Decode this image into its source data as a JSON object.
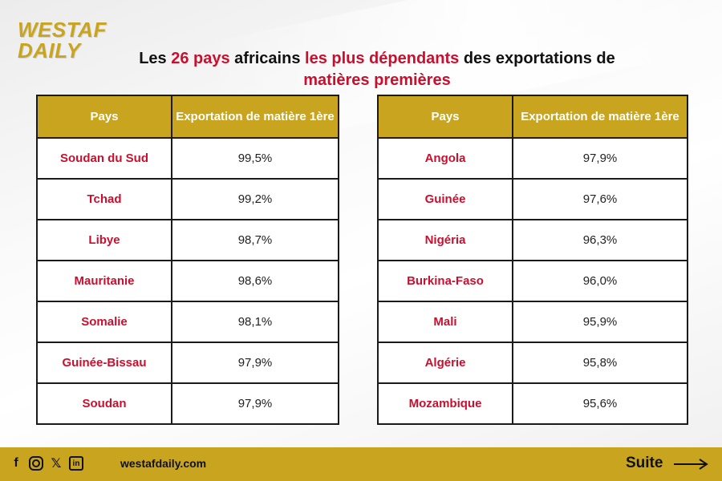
{
  "brand": {
    "line1": "WESTAF",
    "line2": "DAILY"
  },
  "title": {
    "p1": "Les ",
    "p2": "26 pays",
    "p3": " africains ",
    "p4": "les plus dépendants",
    "p5": " des exportations de ",
    "p6": "matières premières"
  },
  "table_left": {
    "headers": [
      "Pays",
      "Exportation de matière 1ère"
    ],
    "rows": [
      {
        "country": "Soudan du Sud",
        "value": "99,5%"
      },
      {
        "country": "Tchad",
        "value": "99,2%"
      },
      {
        "country": "Libye",
        "value": "98,7%"
      },
      {
        "country": "Mauritanie",
        "value": "98,6%"
      },
      {
        "country": "Somalie",
        "value": "98,1%"
      },
      {
        "country": "Guinée-Bissau",
        "value": "97,9%"
      },
      {
        "country": "Soudan",
        "value": "97,9%"
      }
    ]
  },
  "table_right": {
    "headers": [
      "Pays",
      "Exportation de matière 1ère"
    ],
    "rows": [
      {
        "country": "Angola",
        "value": "97,9%"
      },
      {
        "country": "Guinée",
        "value": "97,6%"
      },
      {
        "country": "Nigéria",
        "value": "96,3%"
      },
      {
        "country": "Burkina-Faso",
        "value": "96,0%"
      },
      {
        "country": "Mali",
        "value": "95,9%"
      },
      {
        "country": "Algérie",
        "value": "95,8%"
      },
      {
        "country": "Mozambique",
        "value": "95,6%"
      }
    ]
  },
  "footer": {
    "icons": [
      "facebook-icon",
      "instagram-icon",
      "x-icon",
      "linkedin-icon"
    ],
    "facebook_glyph": "f",
    "x_glyph": "𝕏",
    "linkedin_glyph": "in",
    "website": "westafdaily.com",
    "next_label": "Suite"
  },
  "colors": {
    "gold": "#c9a51f",
    "red": "#c8102e"
  }
}
